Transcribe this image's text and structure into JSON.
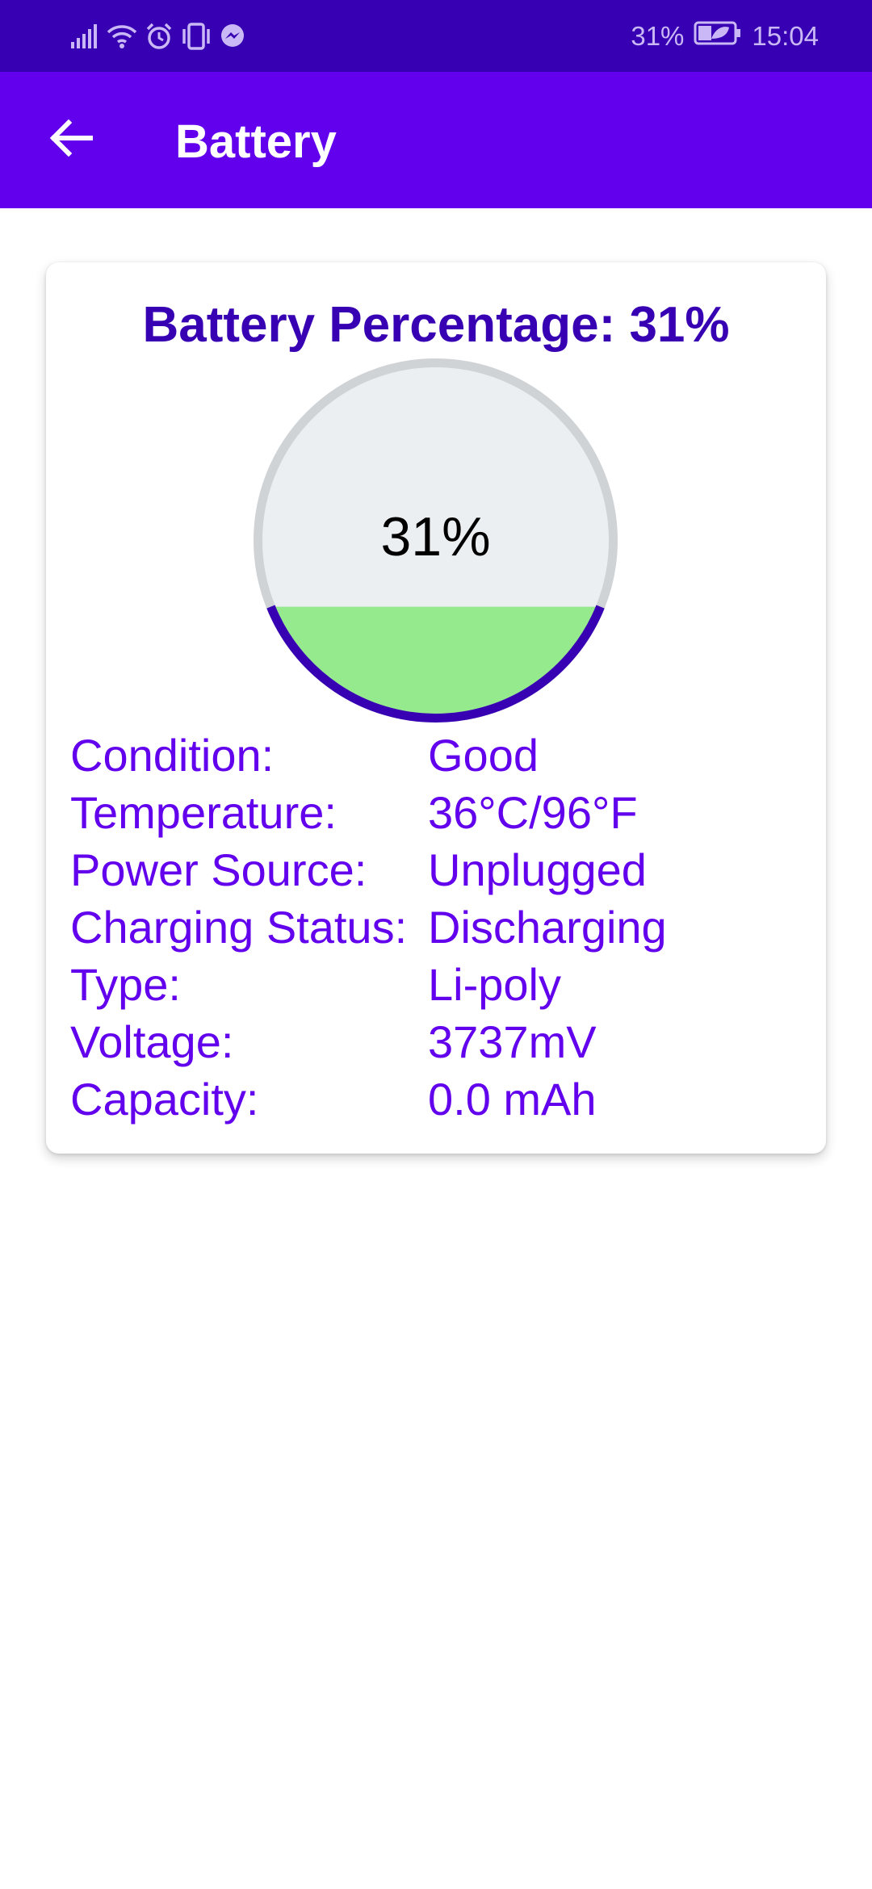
{
  "status_bar": {
    "battery_percent": "31%",
    "time": "15:04"
  },
  "app_bar": {
    "title": "Battery"
  },
  "battery_card": {
    "heading": "Battery Percentage: 31%",
    "gauge_label": "31%",
    "level_percent": 31,
    "colors": {
      "fill": "#95ea8e",
      "empty": "#eceff1",
      "ring": "#d0d3d6",
      "ring_filled": "#3700b3"
    },
    "details": [
      {
        "label": "Condition:",
        "value": "Good"
      },
      {
        "label": "Temperature:",
        "value": "36°C/96°F"
      },
      {
        "label": "Power Source:",
        "value": "Unplugged"
      },
      {
        "label": "Charging Status:",
        "value": "Discharging"
      },
      {
        "label": "Type:",
        "value": "Li-poly"
      },
      {
        "label": "Voltage:",
        "value": "3737mV"
      },
      {
        "label": "Capacity:",
        "value": "0.0 mAh"
      }
    ]
  },
  "icons": {
    "status_left": [
      "signal-icon",
      "wifi-icon",
      "alarm-icon",
      "vibrate-icon",
      "messenger-icon"
    ],
    "status_right": [
      "battery-icon"
    ],
    "app_bar": [
      "back-arrow-icon"
    ]
  },
  "theme": {
    "status_bar": "#3700b3",
    "app_bar": "#6200ee",
    "accent_text": "#6200ee",
    "heading_text": "#3700b3"
  }
}
